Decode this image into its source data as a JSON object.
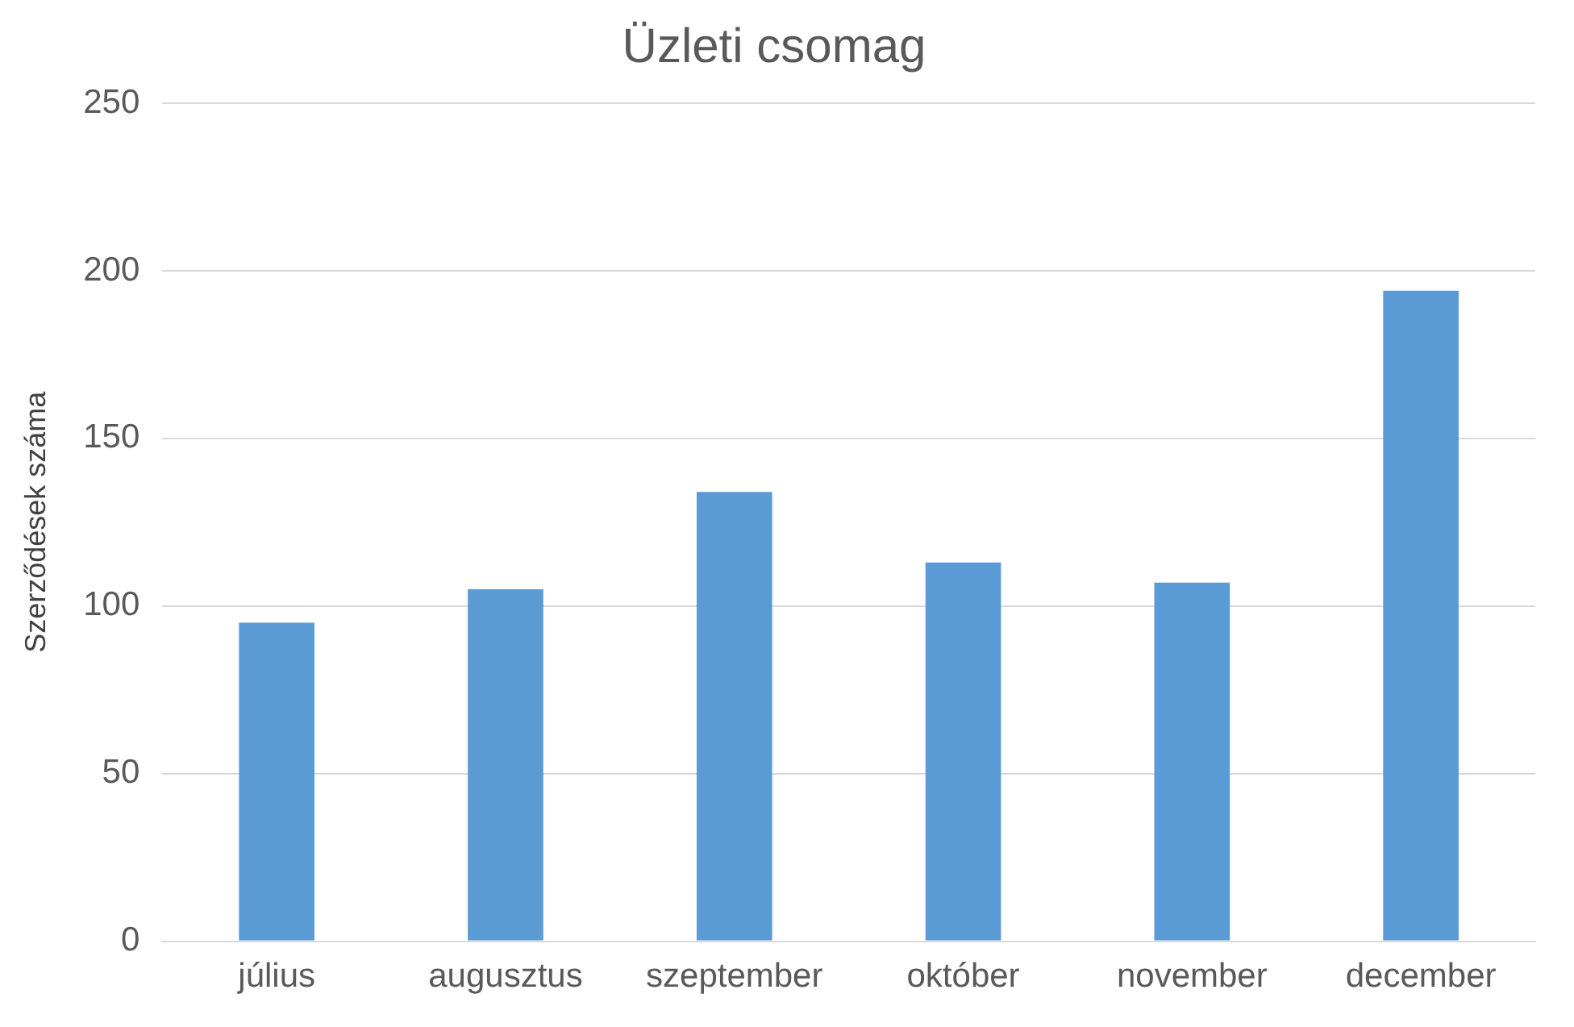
{
  "chart_data": {
    "type": "bar",
    "title": "Üzleti csomag",
    "ylabel": "Szerződések száma",
    "categories": [
      "július",
      "augusztus",
      "szeptember",
      "október",
      "november",
      "december"
    ],
    "values": [
      95,
      105,
      134,
      113,
      107,
      194
    ],
    "color": "#5b9bd5",
    "ylim": [
      0,
      250
    ],
    "yticks": [
      0,
      50,
      100,
      150,
      200,
      250
    ],
    "grid": "y",
    "legend": false
  }
}
